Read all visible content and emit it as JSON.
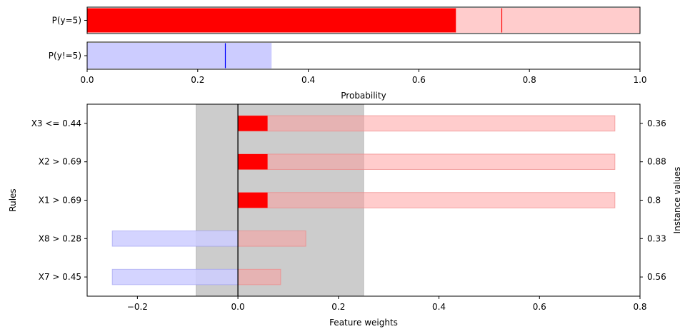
{
  "chart_data": [
    {
      "type": "bar",
      "orientation": "horizontal",
      "xlabel": "Probability",
      "xlim": [
        0,
        1
      ],
      "xticks": [
        "0.0",
        "0.2",
        "0.4",
        "0.6",
        "0.8",
        "1.0"
      ],
      "xtick_values": [
        0,
        0.2,
        0.4,
        0.6,
        0.8,
        1.0
      ],
      "rows": [
        {
          "label": "P(y=5)",
          "value": 0.667,
          "interval": [
            0.667,
            1.0
          ],
          "marker": 0.75,
          "color": "#ff0000",
          "interval_color": "#ffcccc"
        },
        {
          "label": "P(y!=5)",
          "value": 0.0,
          "interval": [
            0.0,
            0.333
          ],
          "marker": 0.25,
          "color": "#0000ff",
          "interval_color": "#ccccff"
        }
      ]
    },
    {
      "type": "bar",
      "orientation": "horizontal",
      "xlabel": "Feature weights",
      "ylabel": "Rules",
      "ylabel_right": "Instance values",
      "xlim": [
        -0.3,
        0.8
      ],
      "xticks": [
        "−0.2",
        "0.0",
        "0.2",
        "0.4",
        "0.6",
        "0.8"
      ],
      "xtick_values": [
        -0.2,
        0.0,
        0.2,
        0.4,
        0.6,
        0.8
      ],
      "baseline_interval": [
        -0.083,
        0.25
      ],
      "rules": [
        {
          "label": "X3 <= 0.44",
          "instance_value": "0.36",
          "weight": 0.059,
          "interval": [
            0.0,
            0.75
          ]
        },
        {
          "label": "X2 > 0.69",
          "instance_value": "0.88",
          "weight": 0.059,
          "interval": [
            0.0,
            0.75
          ]
        },
        {
          "label": "X1 > 0.69",
          "instance_value": "0.8",
          "weight": 0.059,
          "interval": [
            0.0,
            0.75
          ]
        },
        {
          "label": "X8 > 0.28",
          "instance_value": "0.33",
          "weight": 0.0,
          "interval": [
            -0.25,
            0.135
          ]
        },
        {
          "label": "X7 > 0.45",
          "instance_value": "0.56",
          "weight": 0.0,
          "interval": [
            -0.25,
            0.085
          ]
        }
      ],
      "colors": {
        "positive": "#ff0000",
        "positive_interval": "#ffcccc",
        "negative_interval": "#ccccff",
        "baseline_band": "#cccccc"
      }
    }
  ]
}
